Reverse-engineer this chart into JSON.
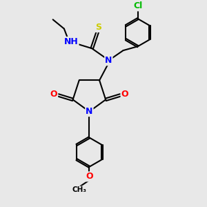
{
  "bg_color": "#e8e8e8",
  "bond_color": "#000000",
  "atom_colors": {
    "N": "#0000ff",
    "O": "#ff0000",
    "S": "#cccc00",
    "Cl": "#00bb00",
    "C": "#000000",
    "H": "#808080"
  },
  "bond_width": 1.5,
  "figsize": [
    3.0,
    3.0
  ],
  "dpi": 100,
  "xlim": [
    0,
    10
  ],
  "ylim": [
    0,
    10
  ]
}
